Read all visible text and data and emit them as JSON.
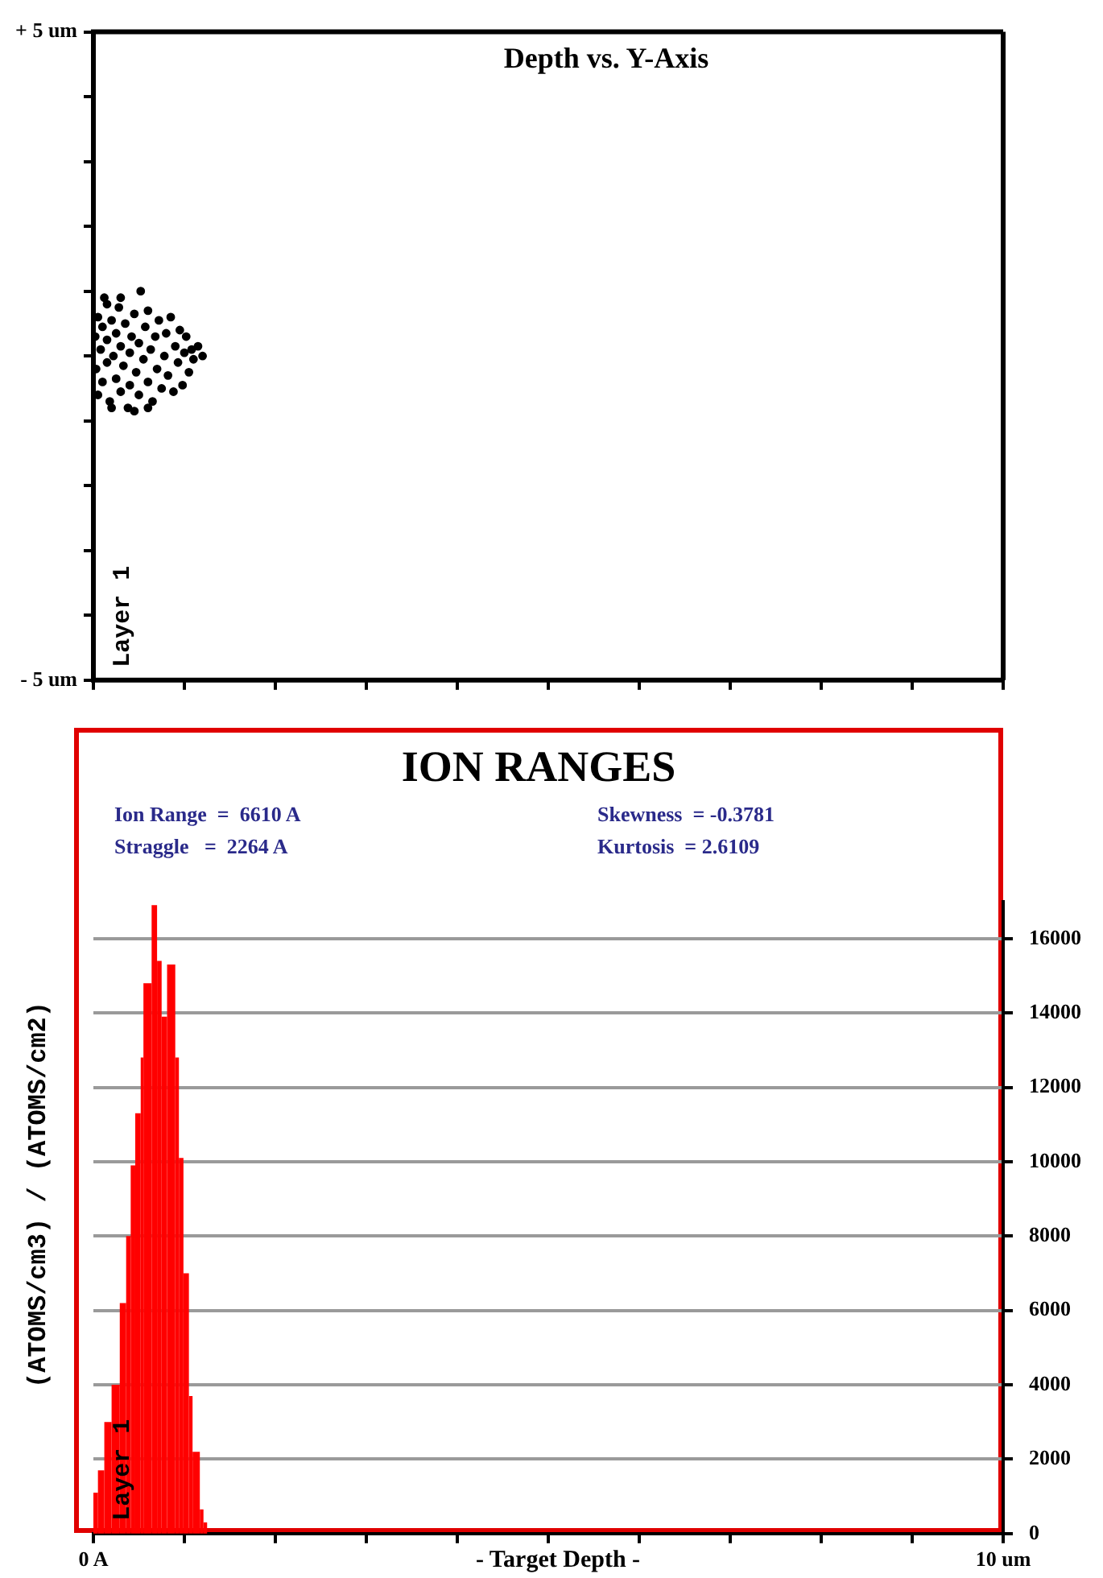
{
  "chart_data": [
    {
      "type": "scatter",
      "title": "Depth vs. Y-Axis",
      "annotations": [
        "Layer 1"
      ],
      "xlim": [
        0,
        10
      ],
      "ylim": [
        -5,
        5
      ],
      "tick_labels": "y",
      "marker": "circle",
      "xticks": [
        {
          "value": 0,
          "label": null
        },
        {
          "value": 1,
          "label": null
        },
        {
          "value": 2,
          "label": null
        },
        {
          "value": 3,
          "label": null
        },
        {
          "value": 4,
          "label": null
        },
        {
          "value": 5,
          "label": null
        },
        {
          "value": 6,
          "label": null
        },
        {
          "value": 7,
          "label": null
        },
        {
          "value": 8,
          "label": null
        },
        {
          "value": 9,
          "label": null
        },
        {
          "value": 10,
          "label": null
        }
      ],
      "yticks": [
        {
          "value": -5,
          "label": "- 5 um"
        },
        {
          "value": -4,
          "label": null
        },
        {
          "value": -3,
          "label": null
        },
        {
          "value": -2,
          "label": null
        },
        {
          "value": -1,
          "label": null
        },
        {
          "value": 0,
          "label": null
        },
        {
          "value": 1,
          "label": null
        },
        {
          "value": 2,
          "label": null
        },
        {
          "value": 3,
          "label": null
        },
        {
          "value": 4,
          "label": null
        },
        {
          "value": 5,
          "label": "+ 5 um"
        }
      ],
      "series": [
        {
          "color": "#000000",
          "x": [
            0.02,
            0.03,
            0.05,
            0.05,
            0.08,
            0.1,
            0.1,
            0.12,
            0.15,
            0.15,
            0.18,
            0.2,
            0.22,
            0.25,
            0.25,
            0.28,
            0.3,
            0.3,
            0.33,
            0.35,
            0.38,
            0.4,
            0.4,
            0.42,
            0.45,
            0.47,
            0.5,
            0.5,
            0.52,
            0.55,
            0.57,
            0.6,
            0.6,
            0.63,
            0.65,
            0.68,
            0.7,
            0.72,
            0.75,
            0.78,
            0.8,
            0.82,
            0.85,
            0.88,
            0.9,
            0.93,
            0.95,
            0.98,
            1.0,
            1.02,
            1.05,
            1.08,
            1.1,
            1.15,
            1.2,
            0.3,
            0.15,
            0.6,
            0.2,
            0.45
          ],
          "values": [
            0.3,
            -0.2,
            0.6,
            -0.6,
            0.1,
            -0.4,
            0.45,
            0.9,
            -0.1,
            0.25,
            -0.7,
            0.55,
            0.0,
            -0.35,
            0.35,
            0.75,
            -0.55,
            0.15,
            -0.15,
            0.5,
            -0.8,
            0.05,
            -0.45,
            0.3,
            0.65,
            -0.25,
            0.2,
            -0.6,
            1.0,
            -0.05,
            0.45,
            -0.4,
            0.7,
            0.1,
            -0.7,
            0.3,
            -0.2,
            0.55,
            -0.5,
            0.0,
            0.35,
            -0.3,
            0.6,
            -0.55,
            0.15,
            -0.1,
            0.4,
            -0.45,
            0.05,
            0.3,
            -0.25,
            0.1,
            -0.05,
            0.15,
            0.0,
            0.9,
            0.8,
            -0.8,
            -0.8,
            -0.85
          ]
        }
      ]
    },
    {
      "type": "histogram",
      "title": "ION RANGES",
      "xlabel": "- Target Depth -",
      "ylabel": "(ATOMS/cm3) / (ATOMS/cm2)",
      "annotations": [
        "Ion Range  =  6610 A",
        "Skewness  = -0.3781",
        "Straggle   =  2264 A",
        "Kurtosis  = 2.6109",
        "Layer 1"
      ],
      "xlim": [
        0,
        10
      ],
      "ylim": [
        0,
        17000
      ],
      "grid": "y",
      "color": "#ff0000",
      "xticks": [
        {
          "value": 0,
          "label": "0 A"
        },
        {
          "value": 1,
          "label": null
        },
        {
          "value": 2,
          "label": null
        },
        {
          "value": 3,
          "label": null
        },
        {
          "value": 4,
          "label": null
        },
        {
          "value": 5,
          "label": null
        },
        {
          "value": 6,
          "label": null
        },
        {
          "value": 7,
          "label": null
        },
        {
          "value": 8,
          "label": null
        },
        {
          "value": 9,
          "label": null
        },
        {
          "value": 10,
          "label": "10 um"
        }
      ],
      "yticks": [
        0,
        2000,
        4000,
        6000,
        8000,
        10000,
        12000,
        14000,
        16000
      ],
      "bins": [
        0,
        0.05,
        0.12,
        0.2,
        0.29,
        0.36,
        0.41,
        0.46,
        0.52,
        0.55,
        0.64,
        0.7,
        0.75,
        0.81,
        0.9,
        0.94,
        0.99,
        1.05,
        1.09,
        1.17,
        1.21,
        1.25
      ],
      "values": [
        1100,
        1700,
        3000,
        4000,
        6200,
        8000,
        9900,
        11300,
        12800,
        14800,
        16900,
        15400,
        13900,
        15300,
        12800,
        10100,
        7000,
        3700,
        2200,
        650,
        300
      ]
    }
  ]
}
